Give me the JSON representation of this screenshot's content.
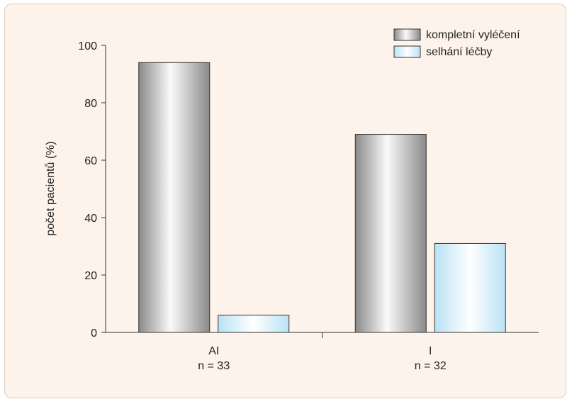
{
  "chart_data": {
    "type": "bar",
    "categories": [
      "AI",
      "I"
    ],
    "category_sublabels": [
      "n = 33",
      "n = 32"
    ],
    "series": [
      {
        "name": "kompletní vyléčení",
        "values": [
          94,
          69
        ],
        "color": "#b8b8b8"
      },
      {
        "name": "selhání léčby",
        "values": [
          6,
          31
        ],
        "color": "#d4eefa"
      }
    ],
    "ylabel": "počet pacientů (%)",
    "ylim": [
      0,
      100
    ],
    "yticks": [
      0,
      20,
      40,
      60,
      80,
      100
    ],
    "legend_position": "top-right",
    "grid": false
  }
}
